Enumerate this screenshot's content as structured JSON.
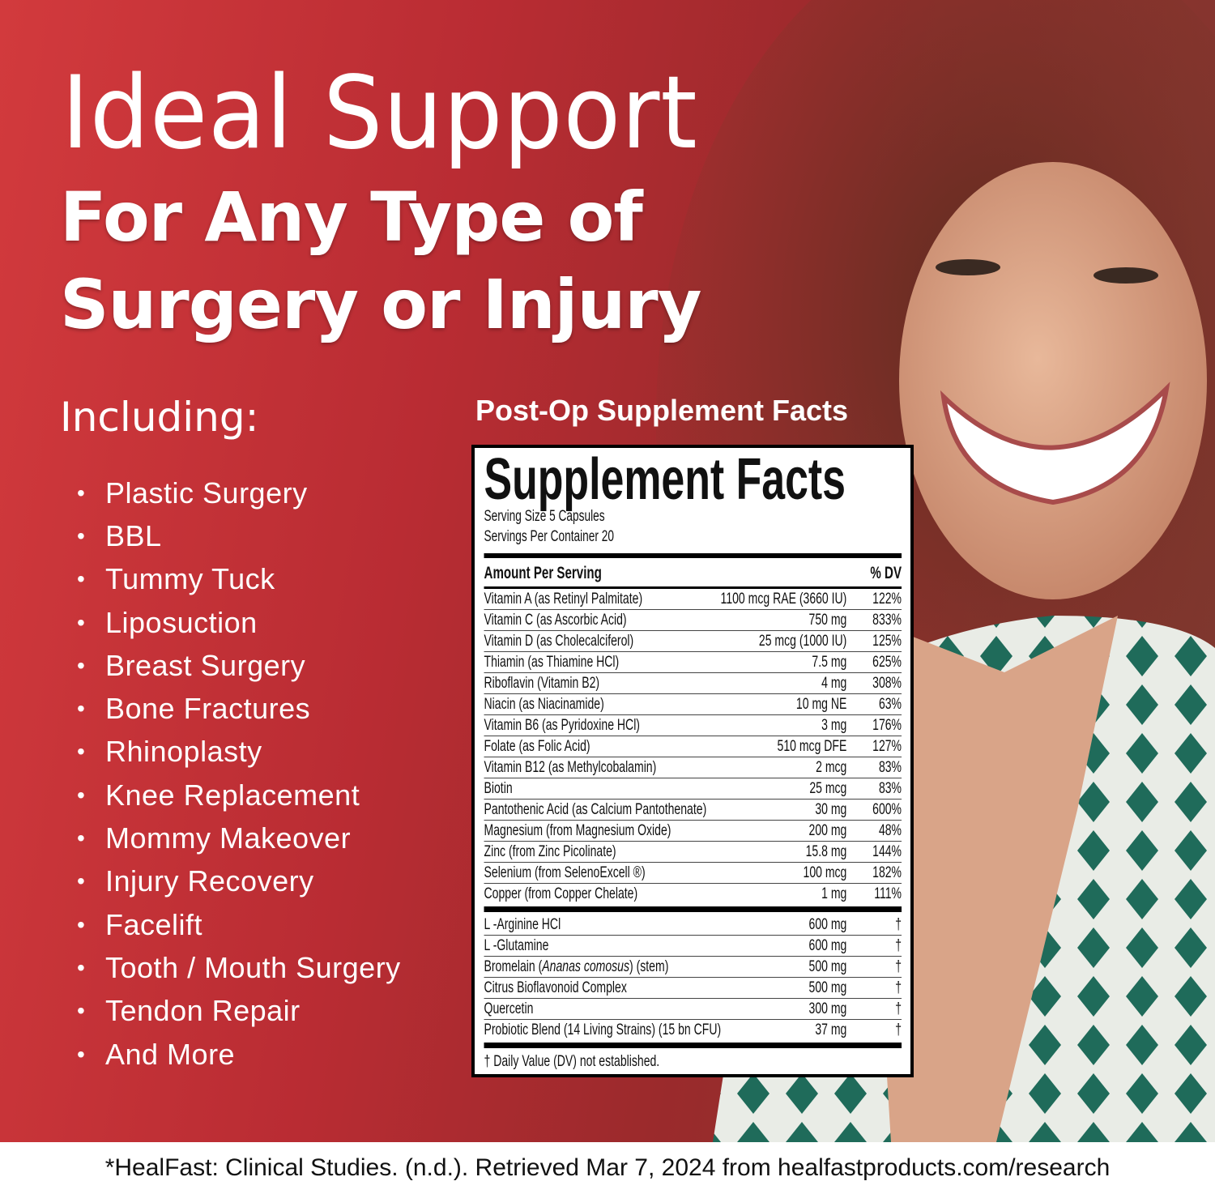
{
  "headline": {
    "line1": "Ideal Support",
    "line2": "For Any Type of",
    "line3": "Surgery or Injury"
  },
  "including_label": "Including:",
  "conditions": [
    "Plastic Surgery",
    "BBL",
    "Tummy Tuck",
    "Liposuction",
    "Breast Surgery",
    "Bone Fractures",
    "Rhinoplasty",
    "Knee Replacement",
    "Mommy Makeover",
    "Injury Recovery",
    "Facelift",
    "Tooth / Mouth Surgery",
    "Tendon Repair",
    "And More"
  ],
  "bullet": "•",
  "facts_heading": "Post-Op Supplement Facts",
  "facts": {
    "title": "Supplement Facts",
    "serving_size": "Serving Size 5 Capsules",
    "servings_per_container": "Servings Per Container 20",
    "amount_header": "Amount Per Serving",
    "dv_header": "% DV",
    "vitamins": [
      [
        "Vitamin A (as Retinyl Palmitate)",
        "1100 mcg RAE (3660 IU)",
        "122%"
      ],
      [
        "Vitamin C (as Ascorbic Acid)",
        "750 mg",
        "833%"
      ],
      [
        "Vitamin D (as Cholecalciferol)",
        "25 mcg (1000 IU)",
        "125%"
      ],
      [
        "Thiamin (as Thiamine HCl)",
        "7.5 mg",
        "625%"
      ],
      [
        "Riboflavin (Vitamin B2)",
        "4 mg",
        "308%"
      ],
      [
        "Niacin (as Niacinamide)",
        "10 mg NE",
        "63%"
      ],
      [
        "Vitamin B6 (as Pyridoxine HCl)",
        "3 mg",
        "176%"
      ],
      [
        "Folate (as Folic Acid)",
        "510 mcg DFE",
        "127%"
      ],
      [
        "Vitamin B12 (as Methylcobalamin)",
        "2 mcg",
        "83%"
      ],
      [
        "Biotin",
        "25 mcg",
        "83%"
      ],
      [
        "Pantothenic Acid (as Calcium Pantothenate)",
        "30 mg",
        "600%"
      ],
      [
        "Magnesium (from Magnesium Oxide)",
        "200 mg",
        "48%"
      ],
      [
        "Zinc (from Zinc Picolinate)",
        "15.8 mg",
        "144%"
      ],
      [
        "Selenium  (from SelenoExcell ®)",
        "100 mcg",
        "182%"
      ],
      [
        "Copper (from Copper Chelate)",
        "1 mg",
        "111%"
      ]
    ],
    "others": [
      [
        "L -Arginine HCl",
        "600 mg",
        "†"
      ],
      [
        "L -Glutamine",
        "600 mg",
        "†"
      ],
      [
        "Bromelain (Ananas comosus) (stem)",
        "500 mg",
        "†"
      ],
      [
        "Citrus Bioflavonoid Complex",
        "500 mg",
        "†"
      ],
      [
        "Quercetin",
        "300 mg",
        "†"
      ],
      [
        "Probiotic Blend (14 Living Strains) (15 bn CFU)",
        "37 mg",
        "†"
      ]
    ],
    "footnote": "† Daily Value (DV) not established."
  },
  "footer": "*HealFast: Clinical Studies. (n.d.). Retrieved Mar 7, 2024 from healfastproducts.com/research",
  "colors": {
    "brand_red": "#c8353a",
    "shirt_green": "#1f6b5a"
  }
}
